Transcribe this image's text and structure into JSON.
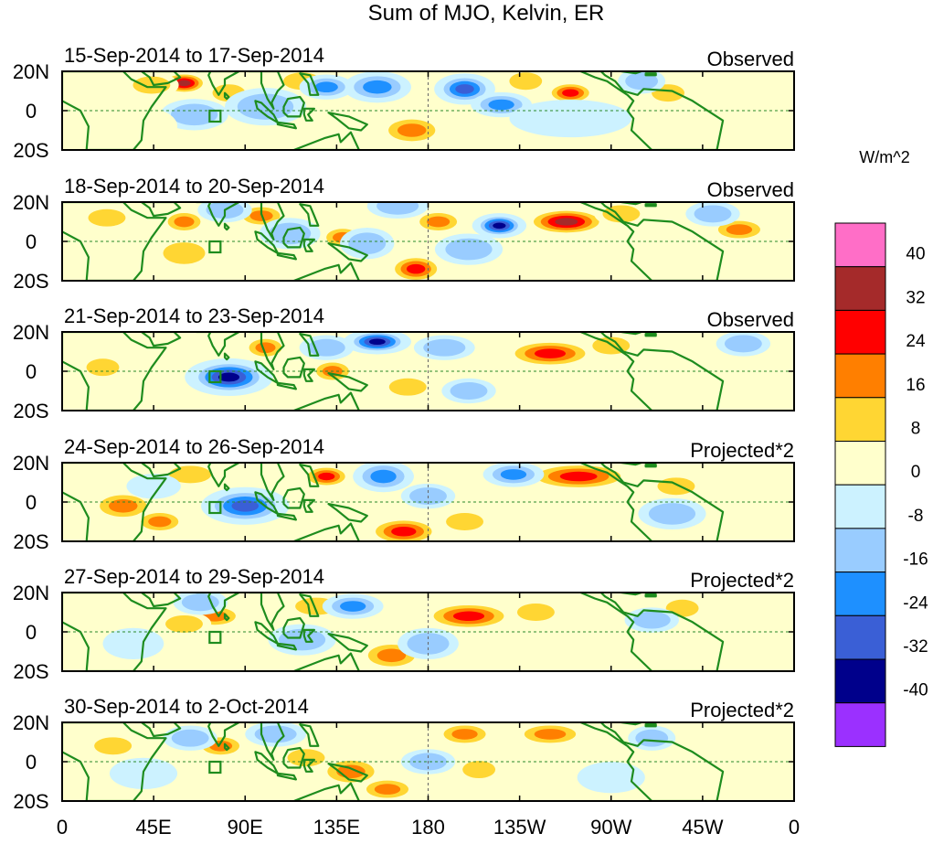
{
  "chart_data": {
    "type": "heatmap",
    "title": "Sum of MJO, Kelvin, ER",
    "x_ticks": [
      "0",
      "45E",
      "90E",
      "135E",
      "180",
      "135W",
      "90W",
      "45W",
      "0"
    ],
    "y_ticks": [
      "20N",
      "0",
      "20S"
    ],
    "xlim": [
      0,
      360
    ],
    "ylim": [
      -20,
      20
    ],
    "colorbar": {
      "units": "W/m^2",
      "levels": [
        "40",
        "32",
        "24",
        "16",
        "8",
        "0",
        "-8",
        "-16",
        "-24",
        "-32",
        "-40"
      ],
      "colors": [
        "#ff6ec7",
        "#a52a2a",
        "#ff0000",
        "#ff7f00",
        "#ffd633",
        "#ffffcc",
        "#ccf2ff",
        "#99ccff",
        "#1e90ff",
        "#3a5fd6",
        "#00008b",
        "#9b30ff"
      ]
    },
    "panels": [
      {
        "dates": "15-Sep-2014 to 17-Sep-2014",
        "label": "Observed",
        "blobs": [
          [
            60,
            14,
            8,
            4,
            34
          ],
          [
            44,
            13,
            8,
            4,
            14
          ],
          [
            82,
            9,
            7,
            4,
            12
          ],
          [
            118,
            15,
            8,
            4,
            12
          ],
          [
            172,
            -10,
            10,
            5,
            16
          ],
          [
            250,
            9,
            8,
            4,
            26
          ],
          [
            228,
            15,
            7,
            4,
            10
          ],
          [
            298,
            9,
            7,
            4,
            12
          ],
          [
            155,
            12,
            10,
            5,
            -22
          ],
          [
            198,
            11,
            9,
            5,
            -26
          ],
          [
            216,
            3,
            9,
            4,
            -18
          ],
          [
            130,
            12,
            8,
            4,
            -18
          ],
          [
            285,
            15,
            7,
            4,
            -14
          ],
          [
            100,
            2,
            12,
            6,
            -14
          ],
          [
            65,
            -2,
            10,
            5,
            -10
          ],
          [
            250,
            -4,
            18,
            6,
            -6
          ],
          [
            40,
            -8,
            10,
            6,
            6
          ]
        ]
      },
      {
        "dates": "18-Sep-2014 to 20-Sep-2014",
        "label": "Observed",
        "blobs": [
          [
            60,
            10,
            7,
            4,
            20
          ],
          [
            98,
            13,
            8,
            4,
            16
          ],
          [
            138,
            2,
            7,
            4,
            18
          ],
          [
            174,
            -14,
            9,
            5,
            28
          ],
          [
            185,
            10,
            8,
            4,
            18
          ],
          [
            248,
            10,
            14,
            5,
            34
          ],
          [
            275,
            14,
            8,
            4,
            12
          ],
          [
            333,
            6,
            9,
            4,
            22
          ],
          [
            22,
            12,
            8,
            4,
            10
          ],
          [
            215,
            8,
            8,
            4,
            -36
          ],
          [
            165,
            18,
            9,
            4,
            -12
          ],
          [
            150,
            -1,
            8,
            5,
            -12
          ],
          [
            112,
            4,
            9,
            5,
            -14
          ],
          [
            80,
            16,
            8,
            4,
            -12
          ],
          [
            200,
            -4,
            10,
            5,
            -10
          ],
          [
            320,
            14,
            8,
            4,
            -8
          ],
          [
            60,
            -6,
            9,
            5,
            10
          ]
        ]
      },
      {
        "dates": "21-Sep-2014 to 23-Sep-2014",
        "label": "Observed",
        "blobs": [
          [
            100,
            12,
            7,
            4,
            18
          ],
          [
            133,
            0,
            7,
            4,
            20
          ],
          [
            240,
            9,
            15,
            5,
            26
          ],
          [
            270,
            13,
            8,
            4,
            14
          ],
          [
            170,
            -8,
            8,
            4,
            12
          ],
          [
            20,
            2,
            7,
            4,
            8
          ],
          [
            82,
            -3,
            13,
            6,
            -34
          ],
          [
            155,
            15,
            10,
            4,
            -34
          ],
          [
            188,
            12,
            9,
            4,
            -14
          ],
          [
            130,
            12,
            8,
            4,
            -12
          ],
          [
            200,
            -10,
            8,
            4,
            -8
          ],
          [
            335,
            14,
            8,
            4,
            -8
          ]
        ]
      },
      {
        "dates": "24-Sep-2014 to 26-Sep-2014",
        "label": "Projected*2",
        "blobs": [
          [
            30,
            -2,
            10,
            5,
            20
          ],
          [
            48,
            -10,
            8,
            4,
            18
          ],
          [
            63,
            14,
            9,
            4,
            12
          ],
          [
            130,
            13,
            8,
            4,
            24
          ],
          [
            168,
            -15,
            12,
            5,
            30
          ],
          [
            198,
            -10,
            8,
            4,
            14
          ],
          [
            254,
            13,
            18,
            5,
            30
          ],
          [
            302,
            8,
            8,
            4,
            12
          ],
          [
            90,
            -2,
            13,
            6,
            -24
          ],
          [
            158,
            13,
            9,
            5,
            -20
          ],
          [
            222,
            14,
            9,
            4,
            -18
          ],
          [
            180,
            3,
            8,
            4,
            -10
          ],
          [
            300,
            -6,
            10,
            5,
            -10
          ],
          [
            45,
            8,
            8,
            4,
            -6
          ]
        ]
      },
      {
        "dates": "27-Sep-2014 to 29-Sep-2014",
        "label": "Projected*2",
        "blobs": [
          [
            75,
            8,
            9,
            4,
            20
          ],
          [
            60,
            4,
            8,
            4,
            12
          ],
          [
            200,
            8,
            15,
            5,
            30
          ],
          [
            162,
            -12,
            10,
            5,
            18
          ],
          [
            233,
            10,
            8,
            4,
            12
          ],
          [
            125,
            13,
            9,
            4,
            14
          ],
          [
            305,
            12,
            7,
            4,
            10
          ],
          [
            68,
            15,
            8,
            4,
            -12
          ],
          [
            143,
            13,
            9,
            4,
            -22
          ],
          [
            118,
            -4,
            10,
            5,
            -12
          ],
          [
            180,
            -6,
            9,
            5,
            -8
          ],
          [
            290,
            6,
            8,
            4,
            -10
          ],
          [
            35,
            -6,
            9,
            5,
            -6
          ]
        ]
      },
      {
        "dates": "30-Sep-2014 to 2-Oct-2014",
        "label": "Projected*2",
        "blobs": [
          [
            78,
            8,
            8,
            4,
            22
          ],
          [
            120,
            2,
            8,
            4,
            12
          ],
          [
            142,
            -5,
            10,
            5,
            18
          ],
          [
            160,
            -14,
            9,
            4,
            20
          ],
          [
            198,
            14,
            9,
            4,
            18
          ],
          [
            240,
            14,
            11,
            4,
            20
          ],
          [
            205,
            -4,
            7,
            4,
            12
          ],
          [
            25,
            8,
            8,
            4,
            10
          ],
          [
            63,
            12,
            8,
            4,
            -10
          ],
          [
            105,
            14,
            9,
            4,
            -12
          ],
          [
            180,
            0,
            8,
            4,
            -8
          ],
          [
            290,
            12,
            7,
            4,
            -12
          ],
          [
            270,
            -8,
            10,
            5,
            -6
          ],
          [
            40,
            -6,
            10,
            5,
            -6
          ]
        ]
      }
    ]
  }
}
